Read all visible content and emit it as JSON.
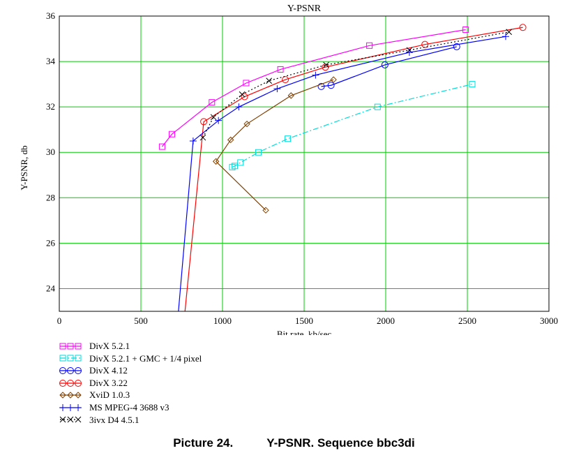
{
  "chart_data": {
    "type": "line",
    "title": "Y-PSNR",
    "xlabel": "Bit rate, kb/sec",
    "ylabel": "Y-PSNR, db",
    "xlim": [
      0,
      3000
    ],
    "ylim": [
      23,
      36
    ],
    "x_ticks": [
      0,
      500,
      1000,
      1500,
      2000,
      2500,
      3000
    ],
    "y_ticks": [
      24,
      26,
      28,
      30,
      32,
      34,
      36
    ],
    "grid": true,
    "legend_position": "below",
    "series": [
      {
        "name": "DivX 5.2.1",
        "color": "#ff00ff",
        "marker": "square",
        "dash": "solid",
        "x": [
          630,
          690,
          935,
          1145,
          1355,
          1900,
          2490
        ],
        "y": [
          30.25,
          30.8,
          32.2,
          33.05,
          33.65,
          34.7,
          35.4
        ]
      },
      {
        "name": "DivX 5.2.1 + GMC + 1/4 pixel",
        "color": "#00dddd",
        "marker": "square",
        "dash": "dashdot",
        "x": [
          1060,
          1075,
          1110,
          1220,
          1400,
          1950,
          2530
        ],
        "y": [
          29.35,
          29.4,
          29.55,
          30.0,
          30.6,
          32.0,
          33.0
        ]
      },
      {
        "name": "DivX 4.12",
        "color": "#0000ff",
        "marker": "circle",
        "dash": "solid",
        "x": [
          1605,
          1665,
          1995,
          2435
        ],
        "y": [
          32.9,
          32.95,
          33.85,
          34.65
        ]
      },
      {
        "name": "DivX 3.22",
        "color": "#ff0000",
        "marker": "circle",
        "dash": "solid",
        "x": [
          770,
          885,
          1135,
          1385,
          1630,
          2240,
          2840
        ],
        "y": [
          23.0,
          31.35,
          32.45,
          33.2,
          33.75,
          34.75,
          35.5
        ]
      },
      {
        "name": "XviD 1.0.3",
        "color": "#804000",
        "marker": "diamond",
        "dash": "solid",
        "x": [
          1265,
          960,
          1050,
          1150,
          1420,
          1680
        ],
        "y": [
          27.45,
          29.6,
          30.55,
          31.25,
          32.5,
          33.2
        ]
      },
      {
        "name": "MS MPEG-4 3688 v3",
        "color": "#0000ff",
        "marker": "plus",
        "dash": "solid",
        "x": [
          730,
          820,
          975,
          1100,
          1335,
          1570,
          2145,
          2735
        ],
        "y": [
          23.0,
          30.5,
          31.4,
          32.0,
          32.8,
          33.4,
          34.4,
          35.1
        ]
      },
      {
        "name": "3ivx D4 4.5.1",
        "color": "#000000",
        "marker": "cross",
        "dash": "dotted",
        "x": [
          880,
          945,
          1120,
          1285,
          1635,
          2145,
          2755
        ],
        "y": [
          30.65,
          31.55,
          32.55,
          33.15,
          33.85,
          34.5,
          35.3
        ]
      }
    ]
  },
  "caption": {
    "number": "Picture 24.",
    "text": "Y-PSNR. Sequence bbc3di"
  }
}
